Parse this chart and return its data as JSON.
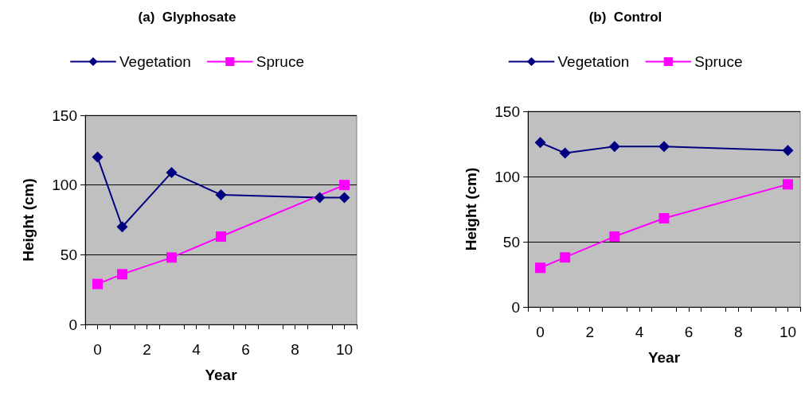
{
  "chart_data": [
    {
      "type": "line",
      "title": "(a)  Glyphosate",
      "xlabel": "Year",
      "ylabel": "Height (cm)",
      "legend": "top",
      "grid": "y",
      "xlim": [
        -0.5,
        10.5
      ],
      "xticks": [
        {
          "value": -0.5,
          "label": null
        },
        0,
        {
          "value": 0.5,
          "label": null
        },
        {
          "value": 1.5,
          "label": null
        },
        2,
        {
          "value": 2.5,
          "label": null
        },
        {
          "value": 3.5,
          "label": null
        },
        4,
        {
          "value": 4.5,
          "label": null
        },
        {
          "value": 5.5,
          "label": null
        },
        6,
        {
          "value": 6.5,
          "label": null
        },
        {
          "value": 7.5,
          "label": null
        },
        8,
        {
          "value": 8.5,
          "label": null
        },
        {
          "value": 9.5,
          "label": null
        },
        10,
        {
          "value": 10.5,
          "label": null
        }
      ],
      "ylim": [
        0,
        150
      ],
      "yticks": [
        0,
        50,
        100,
        150
      ],
      "series": [
        {
          "name": "Vegetation",
          "color": "#000080",
          "marker": "diamond",
          "x": [
            0,
            1,
            3,
            5,
            9,
            10
          ],
          "values": [
            120,
            70,
            109,
            93,
            91,
            91
          ]
        },
        {
          "name": "Spruce",
          "color": "#ff00ff",
          "marker": "square",
          "x": [
            0,
            1,
            3,
            5,
            10
          ],
          "values": [
            29,
            36,
            48,
            63,
            100
          ]
        }
      ]
    },
    {
      "type": "line",
      "title": "(b)  Control",
      "xlabel": "Year",
      "ylabel": "Height (cm)",
      "legend": "top",
      "grid": "y",
      "xlim": [
        -0.5,
        10.5
      ],
      "xticks": [
        {
          "value": -0.5,
          "label": null
        },
        0,
        {
          "value": 0.5,
          "label": null
        },
        {
          "value": 1.5,
          "label": null
        },
        2,
        {
          "value": 2.5,
          "label": null
        },
        {
          "value": 3.5,
          "label": null
        },
        4,
        {
          "value": 4.5,
          "label": null
        },
        {
          "value": 5.5,
          "label": null
        },
        6,
        {
          "value": 6.5,
          "label": null
        },
        {
          "value": 7.5,
          "label": null
        },
        8,
        {
          "value": 8.5,
          "label": null
        },
        {
          "value": 9.5,
          "label": null
        },
        10,
        {
          "value": 10.5,
          "label": null
        }
      ],
      "ylim": [
        0,
        150
      ],
      "yticks": [
        0,
        50,
        100,
        150
      ],
      "series": [
        {
          "name": "Vegetation",
          "color": "#000080",
          "marker": "diamond",
          "x": [
            0,
            1,
            3,
            5,
            10
          ],
          "values": [
            126,
            118,
            123,
            123,
            120
          ]
        },
        {
          "name": "Spruce",
          "color": "#ff00ff",
          "marker": "square",
          "x": [
            0,
            1,
            3,
            5,
            10
          ],
          "values": [
            30,
            38,
            54,
            68,
            94
          ]
        }
      ]
    }
  ]
}
